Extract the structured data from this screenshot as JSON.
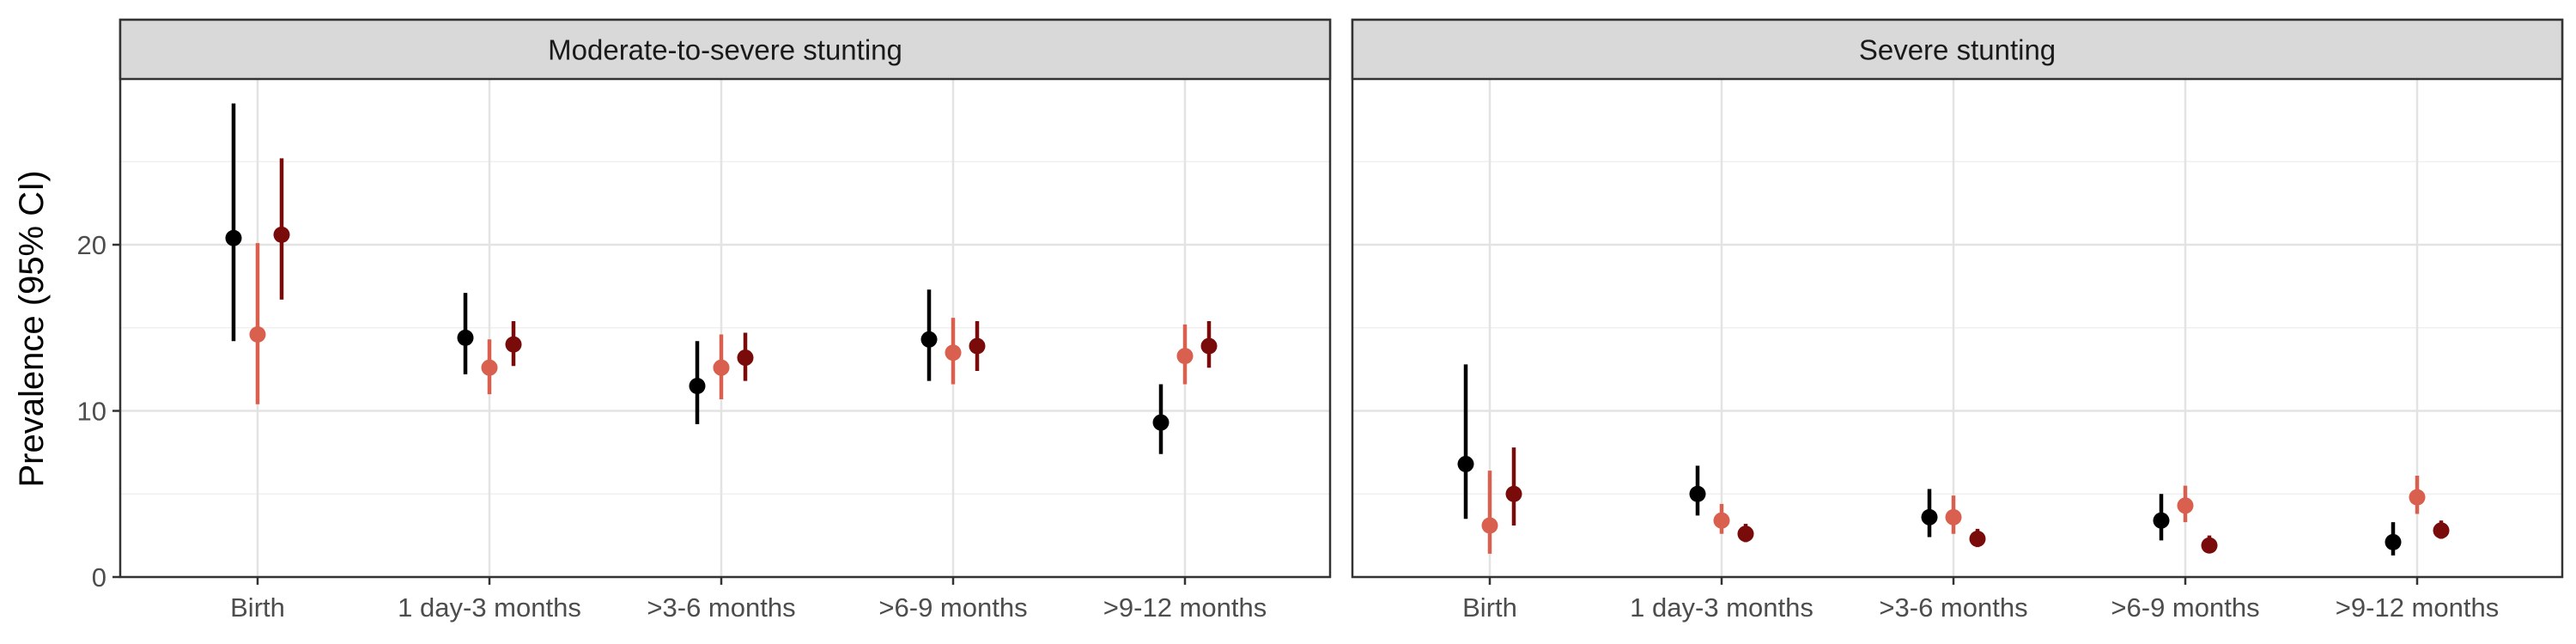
{
  "chart_data": {
    "type": "scatter",
    "ylabel": "Prevalence (95% CI)",
    "ylim": [
      0,
      29
    ],
    "y_ticks": [
      0,
      10,
      20
    ],
    "categories": [
      "Birth",
      "1 day-3 months",
      ">3-6 months",
      ">6-9 months",
      ">9-12 months"
    ],
    "series_colors": [
      "#000000",
      "#d95f4e",
      "#7a0b0b"
    ],
    "grid": true,
    "legend": "none",
    "panels": [
      {
        "title": "Moderate-to-severe stunting",
        "series": [
          {
            "points": [
              {
                "y": 20.4,
                "lo": 14.2,
                "hi": 28.5
              },
              {
                "y": 14.4,
                "lo": 12.2,
                "hi": 17.1
              },
              {
                "y": 11.5,
                "lo": 9.2,
                "hi": 14.2
              },
              {
                "y": 14.3,
                "lo": 11.8,
                "hi": 17.3
              },
              {
                "y": 9.3,
                "lo": 7.4,
                "hi": 11.6
              }
            ]
          },
          {
            "points": [
              {
                "y": 14.6,
                "lo": 10.4,
                "hi": 20.1
              },
              {
                "y": 12.6,
                "lo": 11.0,
                "hi": 14.3
              },
              {
                "y": 12.6,
                "lo": 10.7,
                "hi": 14.6
              },
              {
                "y": 13.5,
                "lo": 11.6,
                "hi": 15.6
              },
              {
                "y": 13.3,
                "lo": 11.6,
                "hi": 15.2
              }
            ]
          },
          {
            "points": [
              {
                "y": 20.6,
                "lo": 16.7,
                "hi": 25.2
              },
              {
                "y": 14.0,
                "lo": 12.7,
                "hi": 15.4
              },
              {
                "y": 13.2,
                "lo": 11.8,
                "hi": 14.7
              },
              {
                "y": 13.9,
                "lo": 12.4,
                "hi": 15.4
              },
              {
                "y": 13.9,
                "lo": 12.6,
                "hi": 15.4
              }
            ]
          }
        ]
      },
      {
        "title": "Severe stunting",
        "series": [
          {
            "points": [
              {
                "y": 6.8,
                "lo": 3.5,
                "hi": 12.8
              },
              {
                "y": 5.0,
                "lo": 3.7,
                "hi": 6.7
              },
              {
                "y": 3.6,
                "lo": 2.4,
                "hi": 5.3
              },
              {
                "y": 3.4,
                "lo": 2.2,
                "hi": 5.0
              },
              {
                "y": 2.1,
                "lo": 1.3,
                "hi": 3.3
              }
            ]
          },
          {
            "points": [
              {
                "y": 3.1,
                "lo": 1.4,
                "hi": 6.4
              },
              {
                "y": 3.4,
                "lo": 2.6,
                "hi": 4.4
              },
              {
                "y": 3.6,
                "lo": 2.6,
                "hi": 4.9
              },
              {
                "y": 4.3,
                "lo": 3.3,
                "hi": 5.5
              },
              {
                "y": 4.8,
                "lo": 3.8,
                "hi": 6.1
              }
            ]
          },
          {
            "points": [
              {
                "y": 5.0,
                "lo": 3.1,
                "hi": 7.8
              },
              {
                "y": 2.6,
                "lo": 2.1,
                "hi": 3.2
              },
              {
                "y": 2.3,
                "lo": 1.8,
                "hi": 2.9
              },
              {
                "y": 1.9,
                "lo": 1.5,
                "hi": 2.5
              },
              {
                "y": 2.8,
                "lo": 2.3,
                "hi": 3.4
              }
            ]
          }
        ]
      }
    ]
  }
}
